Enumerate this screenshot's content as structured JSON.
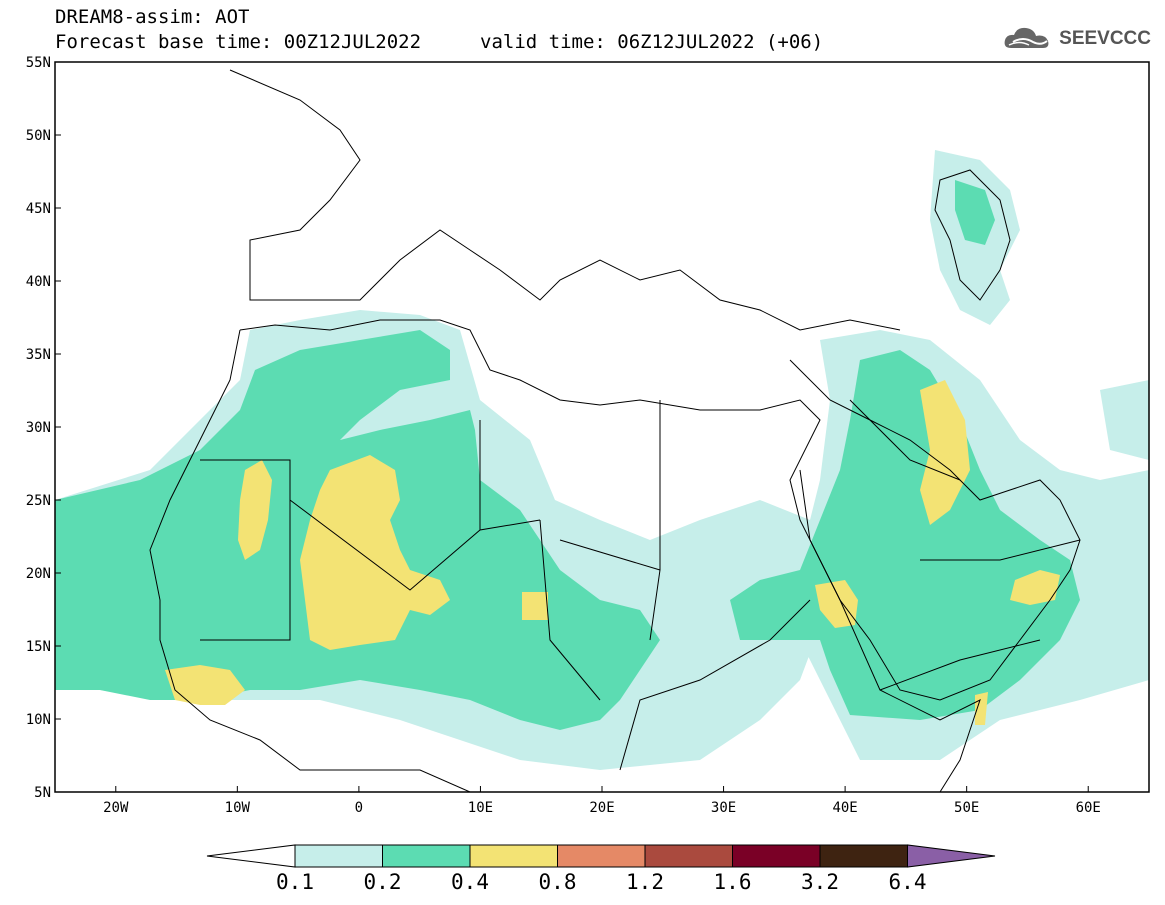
{
  "header": {
    "title": "DREAM8-assim: AOT",
    "base_time": "Forecast base time: 00Z12JUL2022",
    "valid_time": "valid time: 06Z12JUL2022 (+06)"
  },
  "logo": {
    "text": "SEEVCCC",
    "icon": "cloud-icon"
  },
  "map": {
    "lon_range": [
      -25,
      65
    ],
    "lat_range": [
      5,
      55
    ],
    "lat_labels": [
      "55N",
      "50N",
      "45N",
      "40N",
      "35N",
      "30N",
      "25N",
      "20N",
      "15N",
      "10N",
      "5N"
    ],
    "lon_labels": [
      "20W",
      "10W",
      "0",
      "10E",
      "20E",
      "30E",
      "40E",
      "50E",
      "60E"
    ]
  },
  "colorbar": {
    "labels": [
      "0.1",
      "0.2",
      "0.4",
      "0.8",
      "1.2",
      "1.6",
      "3.2",
      "6.4"
    ],
    "colors": [
      "#ffffff",
      "#c6eeea",
      "#5cdcb2",
      "#f3e374",
      "#e58966",
      "#aa4a3e",
      "#7a0026",
      "#3e2311",
      "#8a5fa6"
    ]
  }
}
